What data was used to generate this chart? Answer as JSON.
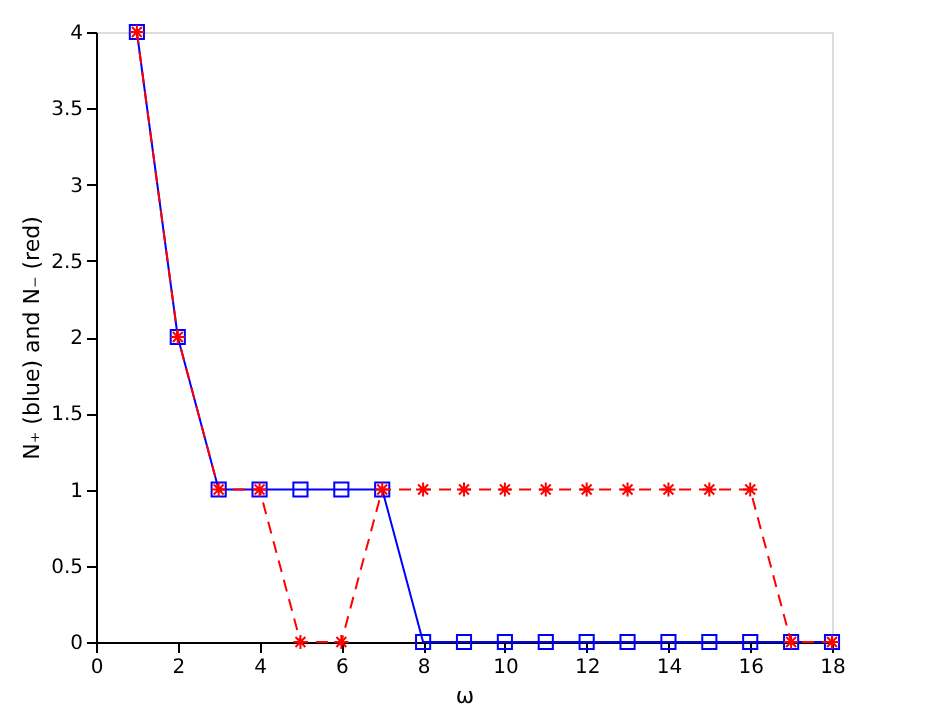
{
  "chart_data": {
    "type": "line",
    "xlabel": "ω",
    "ylabel": "N₊ (blue)  and  N₋ (red)",
    "x": [
      1,
      2,
      3,
      4,
      5,
      6,
      7,
      8,
      9,
      10,
      11,
      12,
      13,
      14,
      15,
      16,
      17,
      18
    ],
    "series": [
      {
        "color": "#0000ff",
        "marker": "square",
        "line_style": "solid",
        "values": [
          4,
          2,
          1,
          1,
          1,
          1,
          1,
          0,
          0,
          0,
          0,
          0,
          0,
          0,
          0,
          0,
          0,
          0
        ]
      },
      {
        "color": "#ff0000",
        "marker": "cross",
        "line_style": "dashed",
        "values": [
          4,
          2,
          1,
          1,
          0,
          0,
          1,
          1,
          1,
          1,
          1,
          1,
          1,
          1,
          1,
          1,
          0,
          0
        ]
      }
    ],
    "xlim": [
      0,
      18
    ],
    "xticks": [
      0,
      2,
      4,
      6,
      8,
      10,
      12,
      14,
      16,
      18
    ],
    "ylim": [
      0,
      4
    ],
    "yticks": [
      0,
      0.5,
      1,
      1.5,
      2,
      2.5,
      3,
      3.5,
      4
    ],
    "grid": false
  }
}
